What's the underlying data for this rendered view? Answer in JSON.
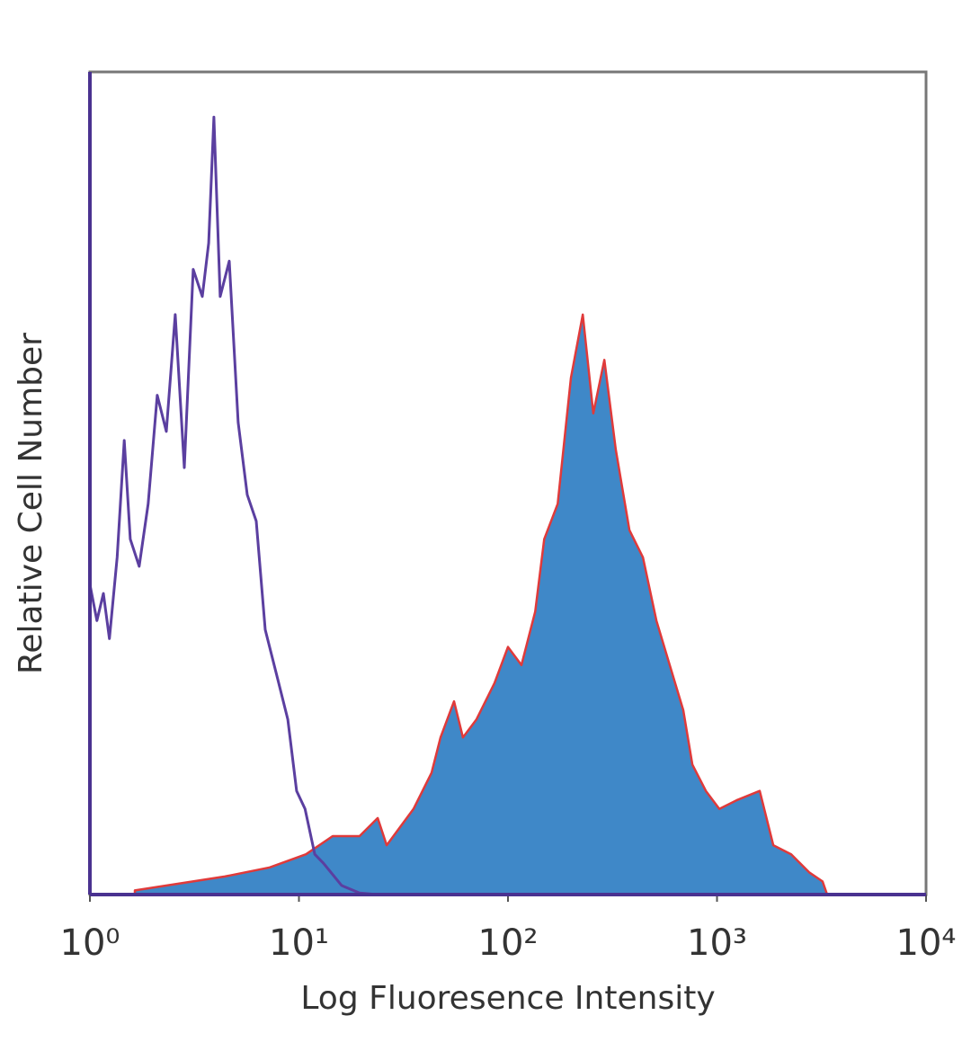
{
  "chart_data": {
    "type": "histogram",
    "xlabel": "Log Fluoresence Intensity",
    "ylabel": "Relative Cell Number",
    "xscale": "log",
    "xlim": [
      1,
      10000
    ],
    "ylim": [
      0,
      100
    ],
    "xticks": [
      {
        "value": 1,
        "label": "10⁰"
      },
      {
        "value": 10,
        "label": "10¹"
      },
      {
        "value": 100,
        "label": "10²"
      },
      {
        "value": 1000,
        "label": "10³"
      },
      {
        "value": 10000,
        "label": "10⁴"
      }
    ],
    "grid": false,
    "series": [
      {
        "color": "#3f88c8",
        "edgecolor": "#e03a3a",
        "filled": true,
        "x": [
          1.64,
          4.42,
          7.25,
          10.8,
          14.5,
          19.5,
          23.8,
          26.3,
          35.3,
          43.1,
          47.6,
          55.2,
          60.9,
          70.7,
          86.2,
          100,
          116,
          135,
          149,
          173,
          200,
          228,
          256,
          289,
          328,
          381,
          442,
          513,
          594,
          690,
          762,
          884,
          1026,
          1250,
          1600,
          1858,
          2264,
          2761,
          3200,
          3365
        ],
        "values": [
          0.5,
          2.2,
          3.3,
          4.9,
          7.1,
          7.1,
          9.3,
          6.0,
          10.4,
          14.8,
          19.1,
          23.5,
          19.1,
          21.3,
          25.7,
          30.1,
          27.9,
          34.4,
          43.2,
          47.5,
          62.8,
          70.5,
          58.5,
          65.0,
          54.1,
          44.3,
          41.0,
          33.3,
          27.9,
          22.4,
          15.8,
          12.6,
          10.4,
          11.5,
          12.6,
          6.0,
          4.9,
          2.7,
          1.6,
          0
        ]
      },
      {
        "color": "#5b3fa0",
        "filled": false,
        "x": [
          1,
          1.08,
          1.16,
          1.24,
          1.35,
          1.46,
          1.56,
          1.72,
          1.9,
          2.1,
          2.32,
          2.56,
          2.83,
          3.12,
          3.45,
          3.7,
          3.92,
          4.2,
          4.64,
          5.12,
          5.66,
          6.25,
          6.9,
          8.0,
          8.84,
          9.75,
          10.7,
          11.9,
          13.1,
          16.0,
          19.5,
          23.7
        ],
        "values": [
          37.7,
          33.3,
          36.6,
          31.1,
          41.0,
          55.2,
          43.2,
          39.9,
          47.5,
          60.7,
          56.3,
          70.5,
          51.9,
          76.0,
          72.7,
          79.2,
          94.5,
          72.7,
          77.0,
          57.4,
          48.6,
          45.4,
          32.2,
          25.7,
          21.3,
          12.6,
          10.4,
          4.9,
          3.8,
          1.1,
          0.2,
          0
        ]
      }
    ]
  }
}
